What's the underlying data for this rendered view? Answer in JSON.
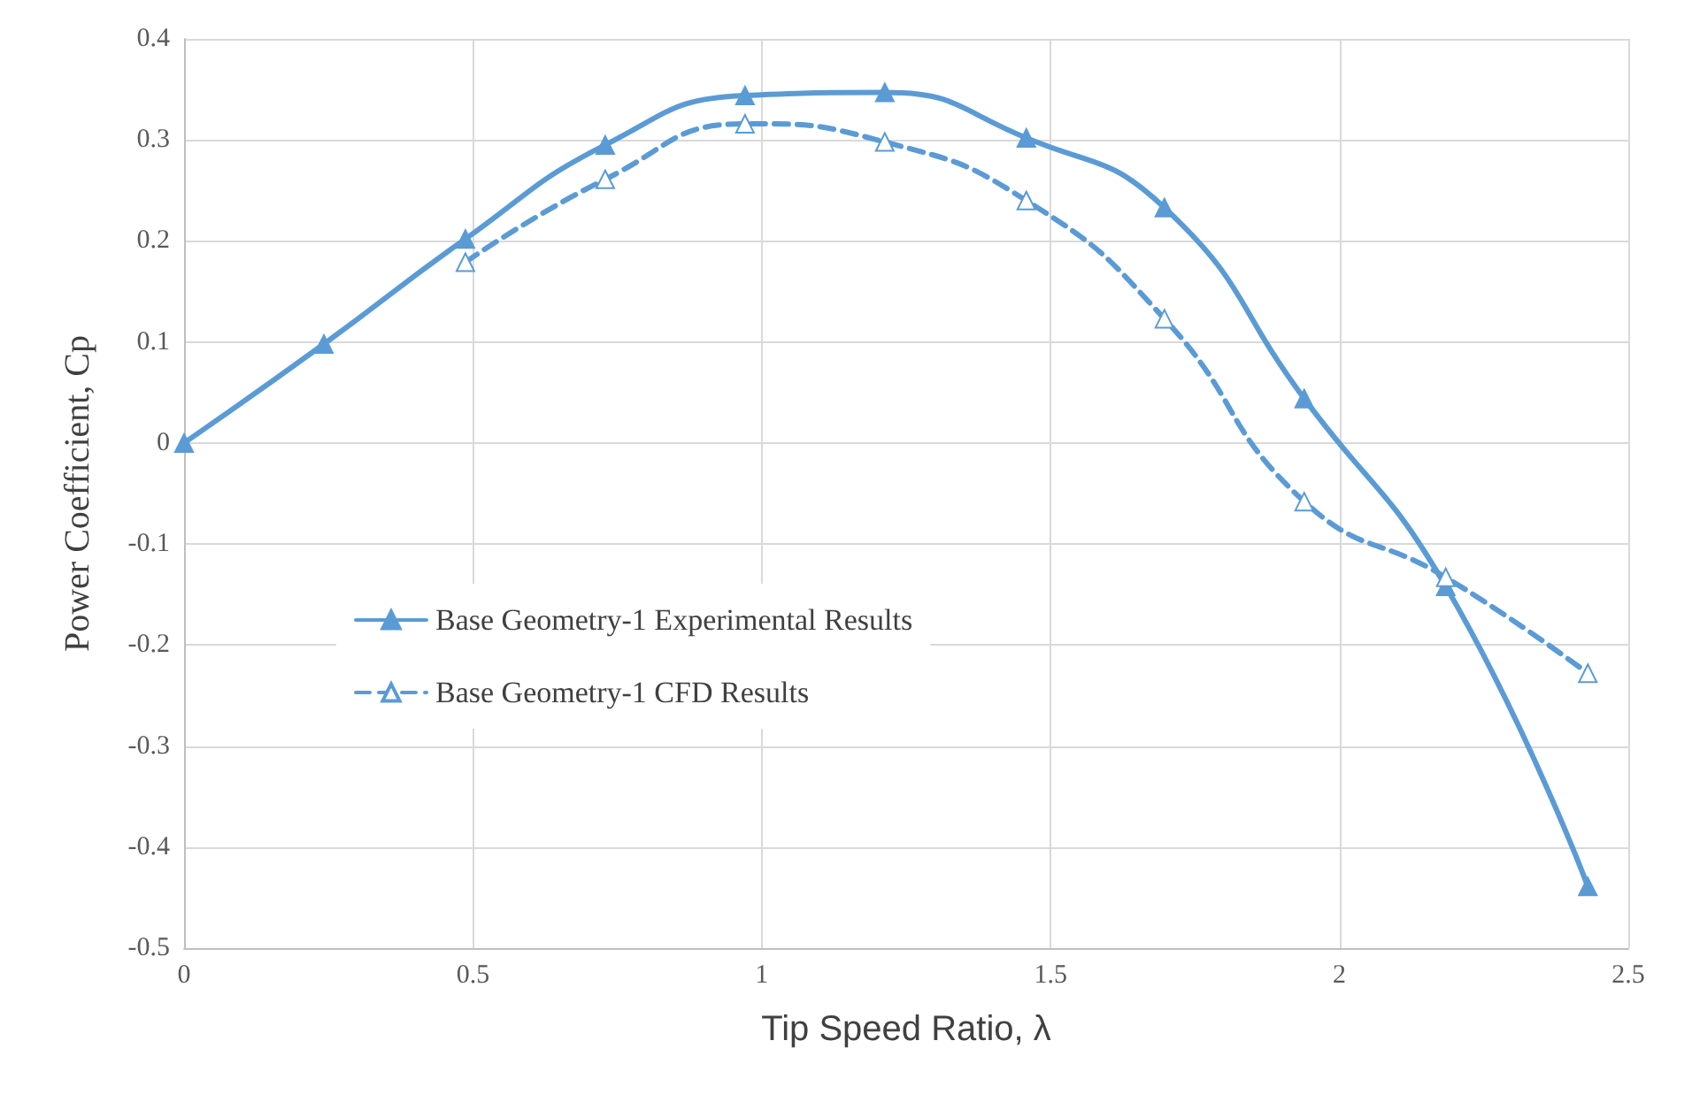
{
  "chart_data": {
    "type": "line",
    "xlabel": "Tip Speed Ratio, λ",
    "ylabel": "Power Coefficient, Cp",
    "xlim": [
      0,
      2.5
    ],
    "xticks": [
      0,
      0.5,
      1,
      1.5,
      2,
      2.5
    ],
    "ylim": [
      -0.5,
      0.4
    ],
    "yticks": [
      -0.5,
      -0.4,
      -0.3,
      -0.2,
      -0.1,
      0,
      0.1,
      0.2,
      0.3,
      0.4
    ],
    "grid": true,
    "legend": "left",
    "marker": "triangle",
    "series": [
      {
        "name": "Base Geometry-1 Experimental Results",
        "color": "#5b9bd5",
        "line_style": "solid",
        "x": [
          0,
          0.242,
          0.487,
          0.729,
          0.971,
          1.213,
          1.458,
          1.697,
          1.939,
          2.184,
          2.43
        ],
        "values": [
          0,
          0.098,
          0.202,
          0.295,
          0.344,
          0.347,
          0.302,
          0.233,
          0.044,
          -0.142,
          -0.439
        ]
      },
      {
        "name": "Base Geometry-1 CFD Results",
        "color": "#5b9bd5",
        "line_style": "dashed",
        "x": [
          0.487,
          0.729,
          0.971,
          1.213,
          1.458,
          1.697,
          1.939,
          2.184,
          2.43
        ],
        "values": [
          0.179,
          0.261,
          0.316,
          0.298,
          0.24,
          0.123,
          -0.058,
          -0.133,
          -0.228
        ]
      }
    ]
  }
}
